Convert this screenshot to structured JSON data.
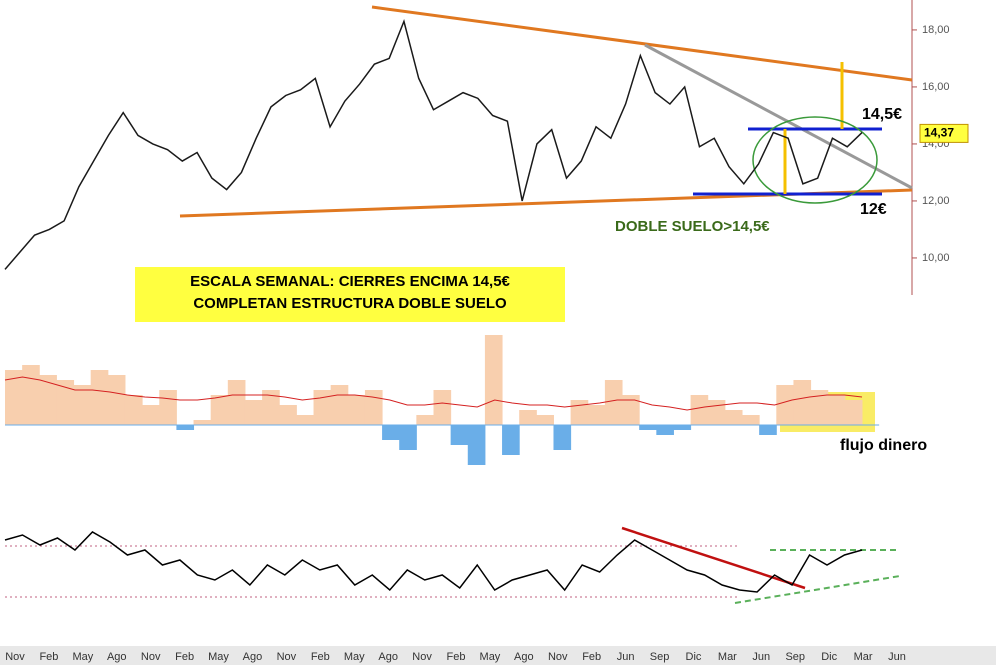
{
  "chart_data": {
    "type": "line",
    "price": {
      "color": "#1a1a1a",
      "values": [
        9.6,
        10.2,
        10.8,
        11.0,
        11.3,
        12.5,
        13.4,
        14.3,
        15.1,
        14.3,
        14.0,
        13.8,
        13.4,
        13.7,
        12.8,
        12.4,
        13.0,
        14.2,
        15.3,
        15.7,
        15.9,
        16.3,
        14.6,
        15.5,
        16.1,
        16.8,
        17.0,
        18.3,
        16.3,
        15.2,
        15.5,
        15.8,
        15.6,
        15.0,
        14.8,
        12.0,
        14.0,
        14.5,
        12.8,
        13.4,
        14.6,
        14.2,
        15.4,
        17.1,
        15.8,
        15.4,
        16.0,
        13.9,
        14.2,
        13.2,
        12.6,
        13.3,
        14.4,
        14.2,
        12.6,
        12.8,
        14.2,
        13.9,
        14.4
      ]
    },
    "ylim": [
      8.7,
      19.05
    ],
    "yticks": [
      {
        "value": 10,
        "label": "10,00"
      },
      {
        "value": 12,
        "label": "12,00"
      },
      {
        "value": 14,
        "label": "14,00"
      },
      {
        "value": 16,
        "label": "16,00"
      },
      {
        "value": 18,
        "label": "18,00"
      }
    ],
    "last_price": {
      "value": 14.37,
      "label": "14,37"
    },
    "annotations": {
      "resistance": "14,5€",
      "support": "12€",
      "pattern": "DOBLE SUELO>14,5€",
      "box_line1": "ESCALA SEMANAL: CIERRES ENCIMA 14,5€",
      "box_line2": "COMPLETAN ESTRUCTURA DOBLE SUELO",
      "flow": "flujo dinero"
    },
    "money_flow": {
      "series": [
        {
          "name": "flujo",
          "color": "#6aaee8",
          "values": [
            55,
            60,
            50,
            45,
            40,
            55,
            50,
            30,
            20,
            35,
            -5,
            5,
            30,
            45,
            25,
            35,
            20,
            10,
            35,
            40,
            30,
            35,
            -15,
            -25,
            10,
            35,
            -20,
            -40,
            90,
            -30,
            15,
            10,
            -25,
            25,
            20,
            45,
            30,
            -5,
            -10,
            -5,
            30,
            25,
            15,
            10,
            -10,
            40,
            45,
            35,
            30,
            25
          ]
        },
        {
          "name": "media",
          "color": "#d42020",
          "values": [
            45,
            48,
            45,
            40,
            35,
            35,
            33,
            30,
            28,
            27,
            25,
            25,
            27,
            30,
            30,
            30,
            28,
            25,
            27,
            30,
            30,
            28,
            25,
            20,
            20,
            22,
            20,
            18,
            25,
            22,
            20,
            20,
            18,
            20,
            22,
            25,
            25,
            20,
            18,
            15,
            18,
            20,
            22,
            22,
            20,
            25,
            28,
            30,
            30,
            28
          ]
        }
      ]
    },
    "oscillator": {
      "color": "#000000",
      "values": [
        70,
        75,
        65,
        72,
        60,
        78,
        68,
        55,
        60,
        45,
        50,
        35,
        30,
        40,
        25,
        45,
        35,
        50,
        40,
        45,
        25,
        35,
        20,
        40,
        30,
        35,
        22,
        45,
        20,
        30,
        35,
        40,
        20,
        45,
        38,
        55,
        70,
        60,
        50,
        40,
        35,
        25,
        20,
        18,
        35,
        25,
        55,
        45,
        55,
        60
      ]
    },
    "x_labels": [
      "Nov",
      "Feb",
      "May",
      "Ago",
      "Nov",
      "Feb",
      "May",
      "Ago",
      "Nov",
      "Feb",
      "May",
      "Ago",
      "Nov",
      "Feb",
      "May",
      "Ago",
      "Nov",
      "Feb",
      "Jun",
      "Sep",
      "Dic",
      "Mar",
      "Jun",
      "Sep",
      "Dic",
      "Mar",
      "Jun"
    ]
  }
}
